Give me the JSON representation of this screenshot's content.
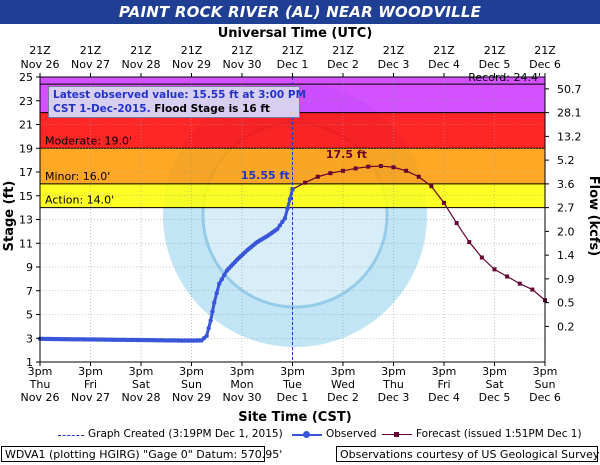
{
  "title": "PAINT ROCK RIVER (AL) NEAR WOODVILLE",
  "top_axis_title": "Universal Time (UTC)",
  "top_ticks": [
    {
      "l1": "21Z",
      "l2": "Nov 26"
    },
    {
      "l1": "21Z",
      "l2": "Nov 27"
    },
    {
      "l1": "21Z",
      "l2": "Nov 28"
    },
    {
      "l1": "21Z",
      "l2": "Nov 29"
    },
    {
      "l1": "21Z",
      "l2": "Nov 30"
    },
    {
      "l1": "21Z",
      "l2": "Dec 1"
    },
    {
      "l1": "21Z",
      "l2": "Dec 2"
    },
    {
      "l1": "21Z",
      "l2": "Dec 3"
    },
    {
      "l1": "21Z",
      "l2": "Dec 4"
    },
    {
      "l1": "21Z",
      "l2": "Dec 5"
    },
    {
      "l1": "21Z",
      "l2": "Dec 6"
    }
  ],
  "bottom_axis_title": "Site Time (CST)",
  "bottom_ticks": [
    {
      "l1": "3pm",
      "l2": "Thu",
      "l3": "Nov 26"
    },
    {
      "l1": "3pm",
      "l2": "Fri",
      "l3": "Nov 27"
    },
    {
      "l1": "3pm",
      "l2": "Sat",
      "l3": "Nov 28"
    },
    {
      "l1": "3pm",
      "l2": "Sun",
      "l3": "Nov 29"
    },
    {
      "l1": "3pm",
      "l2": "Mon",
      "l3": "Nov 30"
    },
    {
      "l1": "3pm",
      "l2": "Tue",
      "l3": "Dec 1"
    },
    {
      "l1": "3pm",
      "l2": "Wed",
      "l3": "Dec 2"
    },
    {
      "l1": "3pm",
      "l2": "Thu",
      "l3": "Dec 3"
    },
    {
      "l1": "3pm",
      "l2": "Fri",
      "l3": "Dec 4"
    },
    {
      "l1": "3pm",
      "l2": "Sat",
      "l3": "Dec 5"
    },
    {
      "l1": "3pm",
      "l2": "Sun",
      "l3": "Dec 6"
    }
  ],
  "y_left_label": "Stage (ft)",
  "y_right_label": "Flow (kcfs)",
  "y_left_ticks": [
    "1",
    "3",
    "5",
    "7",
    "9",
    "11",
    "13",
    "15",
    "17",
    "19",
    "21",
    "23",
    "25"
  ],
  "y_right_ticks": [
    {
      "stage": 4,
      "label": "0.2"
    },
    {
      "stage": 6,
      "label": "0.5"
    },
    {
      "stage": 8,
      "label": "0.9"
    },
    {
      "stage": 10,
      "label": "1.4"
    },
    {
      "stage": 12,
      "label": "2.0"
    },
    {
      "stage": 14,
      "label": "2.7"
    },
    {
      "stage": 16,
      "label": "3.6"
    },
    {
      "stage": 18,
      "label": "5.2"
    },
    {
      "stage": 20,
      "label": "13.2"
    },
    {
      "stage": 22,
      "label": "28.1"
    },
    {
      "stage": 24,
      "label": "50.7"
    }
  ],
  "bands": [
    {
      "from": 14,
      "to": 16,
      "color": "#ffff00",
      "label": "Action: 14.0'"
    },
    {
      "from": 16,
      "to": 19,
      "color": "#ff9900",
      "label": "Minor: 16.0'"
    },
    {
      "from": 19,
      "to": 22,
      "color": "#ff0000",
      "label": "Moderate: 19.0'"
    },
    {
      "from": 22,
      "to": 25,
      "color": "#cc33ff",
      "label": ""
    }
  ],
  "record_label": "Record: 24.4'",
  "record_stage": 24.4,
  "latest_box": {
    "line1": "Latest observed value: 15.55 ft at 3:00 PM",
    "line2a": "CST 1-Dec-2015.",
    "line2b": " Flood Stage is 16 ft"
  },
  "observed_label": "15.55 ft",
  "forecast_label": "17.5 ft",
  "graph_created_day": 5.0,
  "legend": {
    "created": "Graph Created (3:19PM Dec 1, 2015)",
    "observed": "Observed",
    "forecast": "Forecast (issued 1:51PM Dec 1)"
  },
  "footer": {
    "left": "WDVA1 (plotting HGIRG) \"Gage 0\" Datum: 570.95'",
    "right": "Observations courtesy of US Geological Survey"
  },
  "colors": {
    "title_bg": "#1f3f94",
    "observed": "#3a56d8",
    "forecast": "#660033",
    "axis_text": "#000000"
  },
  "chart_data": {
    "type": "line",
    "title": "PAINT ROCK RIVER (AL) NEAR WOODVILLE",
    "xlabel": "Site Time (CST)",
    "ylabel": "Stage (ft)",
    "y2label": "Flow (kcfs)",
    "ylim": [
      1,
      25
    ],
    "x_unit": "days after 3pm Thu Nov 26 (CST)",
    "xlim": [
      0,
      10
    ],
    "series": [
      {
        "name": "Observed",
        "points": [
          [
            0.0,
            2.95
          ],
          [
            0.5,
            2.92
          ],
          [
            1.0,
            2.9
          ],
          [
            1.5,
            2.87
          ],
          [
            2.0,
            2.85
          ],
          [
            2.5,
            2.82
          ],
          [
            3.0,
            2.8
          ],
          [
            3.2,
            2.82
          ],
          [
            3.3,
            3.2
          ],
          [
            3.38,
            4.5
          ],
          [
            3.45,
            6.0
          ],
          [
            3.55,
            7.6
          ],
          [
            3.7,
            8.7
          ],
          [
            3.9,
            9.6
          ],
          [
            4.1,
            10.4
          ],
          [
            4.3,
            11.1
          ],
          [
            4.5,
            11.6
          ],
          [
            4.7,
            12.2
          ],
          [
            4.85,
            13.1
          ],
          [
            5.0,
            15.55
          ]
        ]
      },
      {
        "name": "Forecast",
        "points": [
          [
            5.0,
            15.55
          ],
          [
            5.25,
            16.1
          ],
          [
            5.5,
            16.6
          ],
          [
            5.75,
            16.9
          ],
          [
            6.0,
            17.1
          ],
          [
            6.25,
            17.3
          ],
          [
            6.5,
            17.45
          ],
          [
            6.75,
            17.5
          ],
          [
            7.0,
            17.4
          ],
          [
            7.25,
            17.1
          ],
          [
            7.5,
            16.6
          ],
          [
            7.75,
            15.8
          ],
          [
            8.0,
            14.4
          ],
          [
            8.25,
            12.7
          ],
          [
            8.5,
            11.1
          ],
          [
            8.75,
            9.8
          ],
          [
            9.0,
            8.8
          ],
          [
            9.25,
            8.2
          ],
          [
            9.5,
            7.6
          ],
          [
            9.75,
            7.1
          ],
          [
            10.0,
            6.2
          ]
        ]
      }
    ],
    "thresholds": [
      {
        "name": "Action",
        "value": 14.0
      },
      {
        "name": "Minor",
        "value": 16.0
      },
      {
        "name": "Moderate",
        "value": 19.0
      },
      {
        "name": "Record",
        "value": 24.4
      }
    ],
    "grid": true,
    "legend_placement": "bottom"
  }
}
